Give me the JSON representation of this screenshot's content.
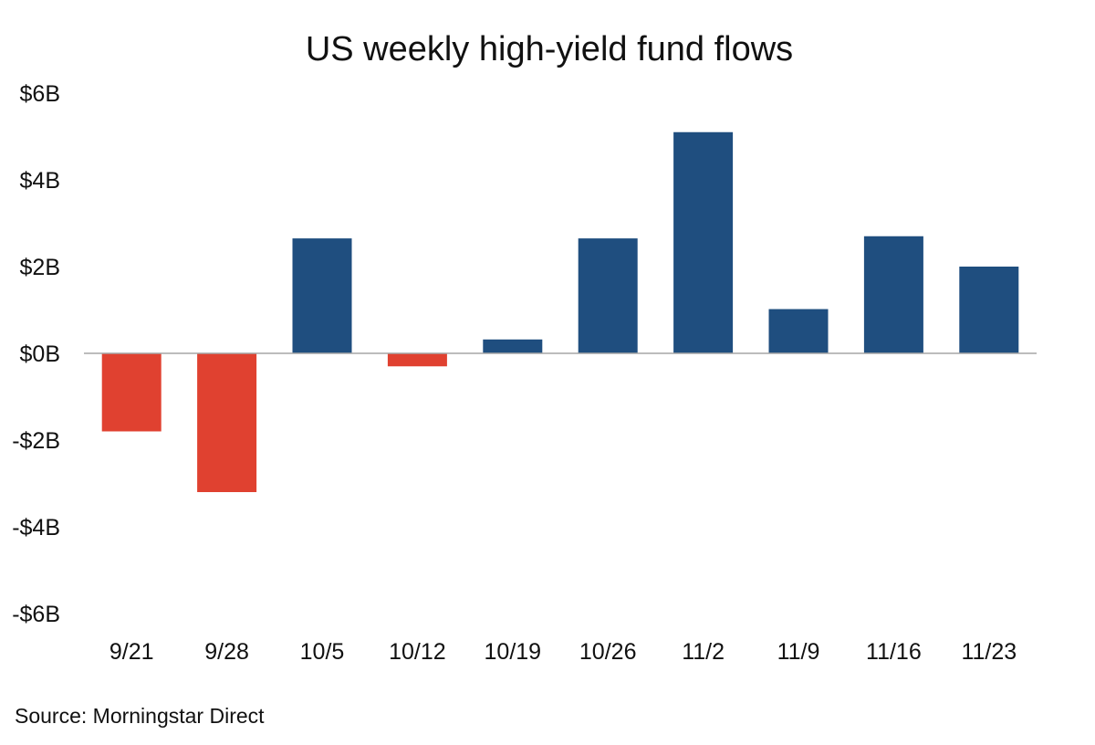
{
  "chart_data": {
    "type": "bar",
    "title": "US weekly high-yield fund flows",
    "categories": [
      "9/21",
      "9/28",
      "10/5",
      "10/12",
      "10/19",
      "10/26",
      "11/2",
      "11/9",
      "11/16",
      "11/23"
    ],
    "values": [
      -1.8,
      -3.2,
      2.65,
      -0.3,
      0.32,
      2.65,
      5.1,
      1.02,
      2.7,
      2.0
    ],
    "unit": "billion USD",
    "ylim": [
      -6,
      6
    ],
    "y_ticks": [
      6,
      4,
      2,
      0,
      -2,
      -4,
      -6
    ],
    "y_tick_labels": [
      "$6B",
      "$4B",
      "$2B",
      "$0B",
      "-$2B",
      "-$4B",
      "-$6B"
    ],
    "xlabel": "",
    "ylabel": "",
    "grid": false,
    "legend": null,
    "colors": {
      "positive": "#1f4e7f",
      "negative": "#e04130",
      "baseline": "#a6a6a6"
    }
  },
  "source": "Source: Morningstar Direct"
}
